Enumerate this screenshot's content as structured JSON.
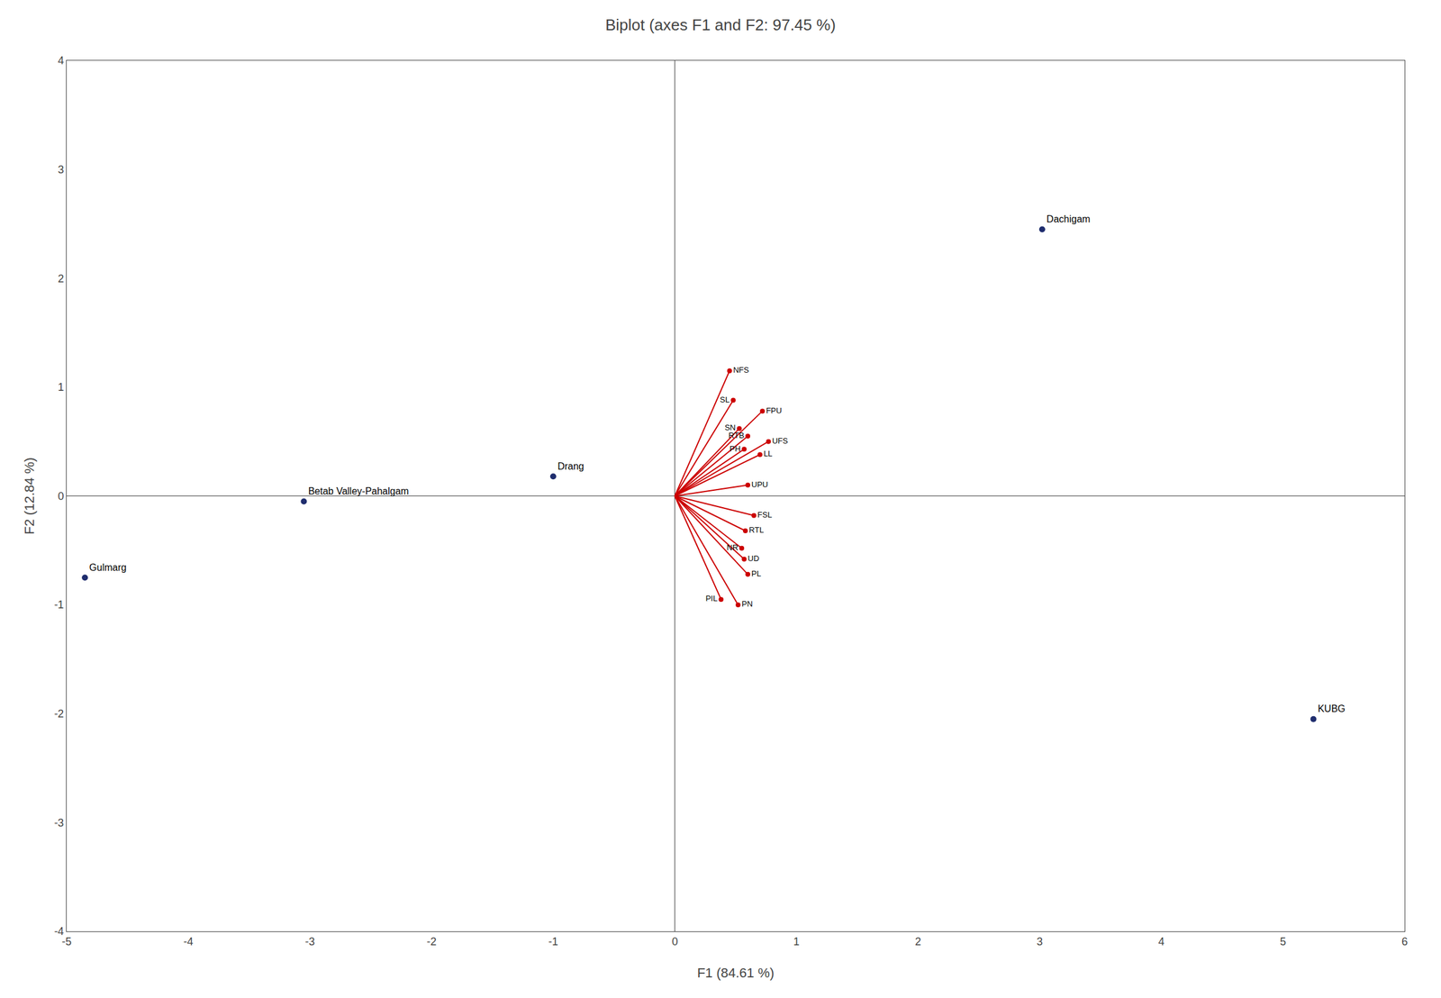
{
  "chart_data": {
    "type": "biplot",
    "title": "Biplot (axes F1 and F2: 97.45 %)",
    "x_label": "F1 (84.61 %)",
    "y_label": "F2 (12.84 %)",
    "xlim": [
      -5,
      6
    ],
    "ylim": [
      -4,
      4
    ],
    "xticks": [
      -5,
      -4,
      -3,
      -2,
      -1,
      0,
      1,
      2,
      3,
      4,
      5,
      6
    ],
    "yticks": [
      -4,
      -3,
      -2,
      -1,
      0,
      1,
      2,
      3,
      4
    ],
    "grid": false,
    "sites": {
      "color": "#1f2d6e",
      "labels": [
        "Dachigam",
        "KUBG",
        "Drang",
        "Betab Valley-Pahalgam",
        "Gulmarg"
      ],
      "x": [
        3.02,
        5.25,
        -1.0,
        -3.05,
        -4.85
      ],
      "y": [
        2.45,
        -2.05,
        0.18,
        -0.05,
        -0.75
      ]
    },
    "vectors": {
      "color": "#cc0000",
      "labels": [
        "NFS",
        "SL",
        "FPU",
        "SN",
        "RTB",
        "UFS",
        "PH",
        "LL",
        "UPU",
        "FSL",
        "RTL",
        "NR",
        "UD",
        "PL",
        "PIL",
        "PN"
      ],
      "x": [
        0.45,
        0.48,
        0.72,
        0.53,
        0.6,
        0.77,
        0.57,
        0.7,
        0.6,
        0.65,
        0.58,
        0.55,
        0.57,
        0.6,
        0.38,
        0.52
      ],
      "y": [
        1.15,
        0.88,
        0.78,
        0.62,
        0.55,
        0.5,
        0.43,
        0.38,
        0.1,
        -0.18,
        -0.32,
        -0.48,
        -0.58,
        -0.72,
        -0.95,
        -1.0
      ]
    }
  }
}
